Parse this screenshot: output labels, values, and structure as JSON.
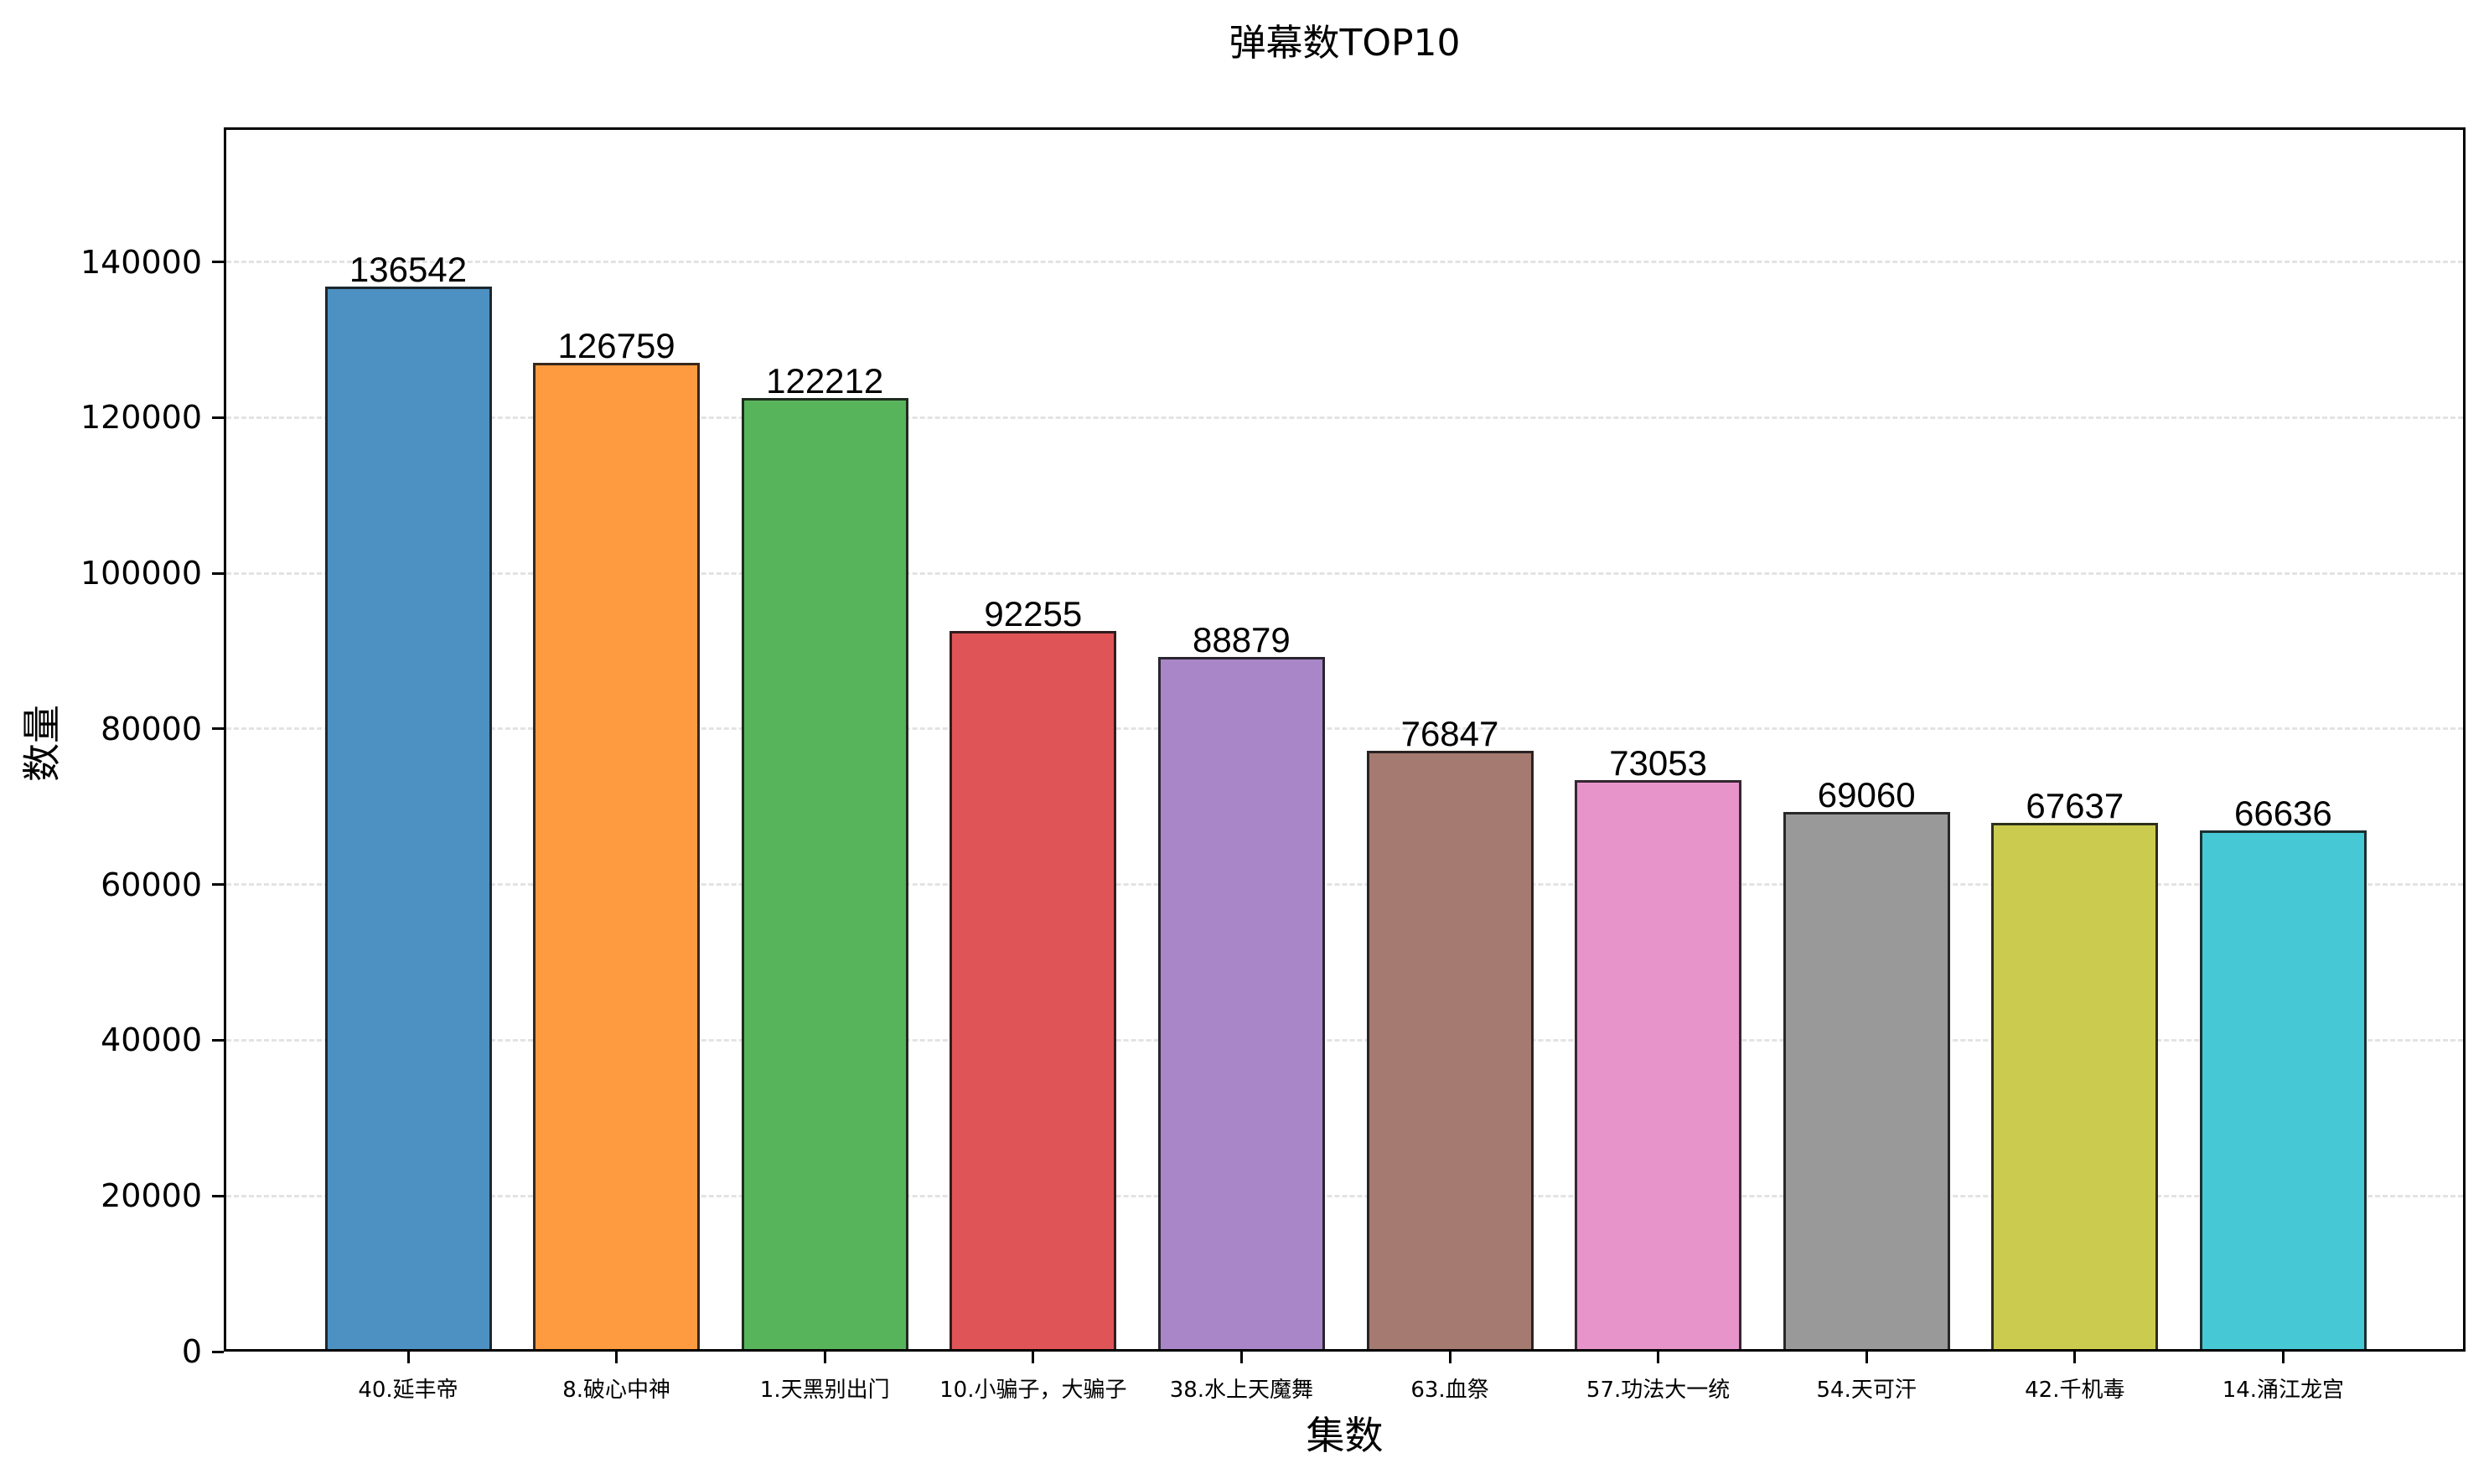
{
  "chart_data": {
    "type": "bar",
    "title": "弹幕数TOP10",
    "xlabel": "集数",
    "ylabel": "数量",
    "categories": [
      "40.延丰帝",
      "8.破心中神",
      "1.天黑别出门",
      "10.小骗子，大骗子",
      "38.水上天魔舞",
      "63.血祭",
      "57.功法大一统",
      "54.天可汗",
      "42.千机毒",
      "14.涌江龙宫"
    ],
    "values": [
      136542,
      126759,
      122212,
      92255,
      88879,
      76847,
      73053,
      69060,
      67637,
      66636
    ],
    "value_labels": [
      "136542",
      "126759",
      "122212",
      "92255",
      "88879",
      "76847",
      "73053",
      "69060",
      "67637",
      "66636"
    ],
    "colors": [
      "#4c91c2",
      "#fe9a40",
      "#58b45b",
      "#df5456",
      "#a986c7",
      "#a57a70",
      "#e794cb",
      "#999999",
      "#cbcb4f",
      "#47c8d5"
    ],
    "ylim": [
      0,
      157291
    ],
    "yticks": [
      0,
      20000,
      40000,
      60000,
      80000,
      100000,
      120000,
      140000
    ],
    "ytick_labels": [
      "0",
      "20000",
      "40000",
      "60000",
      "80000",
      "100000",
      "120000",
      "140000"
    ],
    "grid": {
      "axis": "y",
      "style": "dashed",
      "color": "#e3e3e3"
    },
    "legend": null
  }
}
